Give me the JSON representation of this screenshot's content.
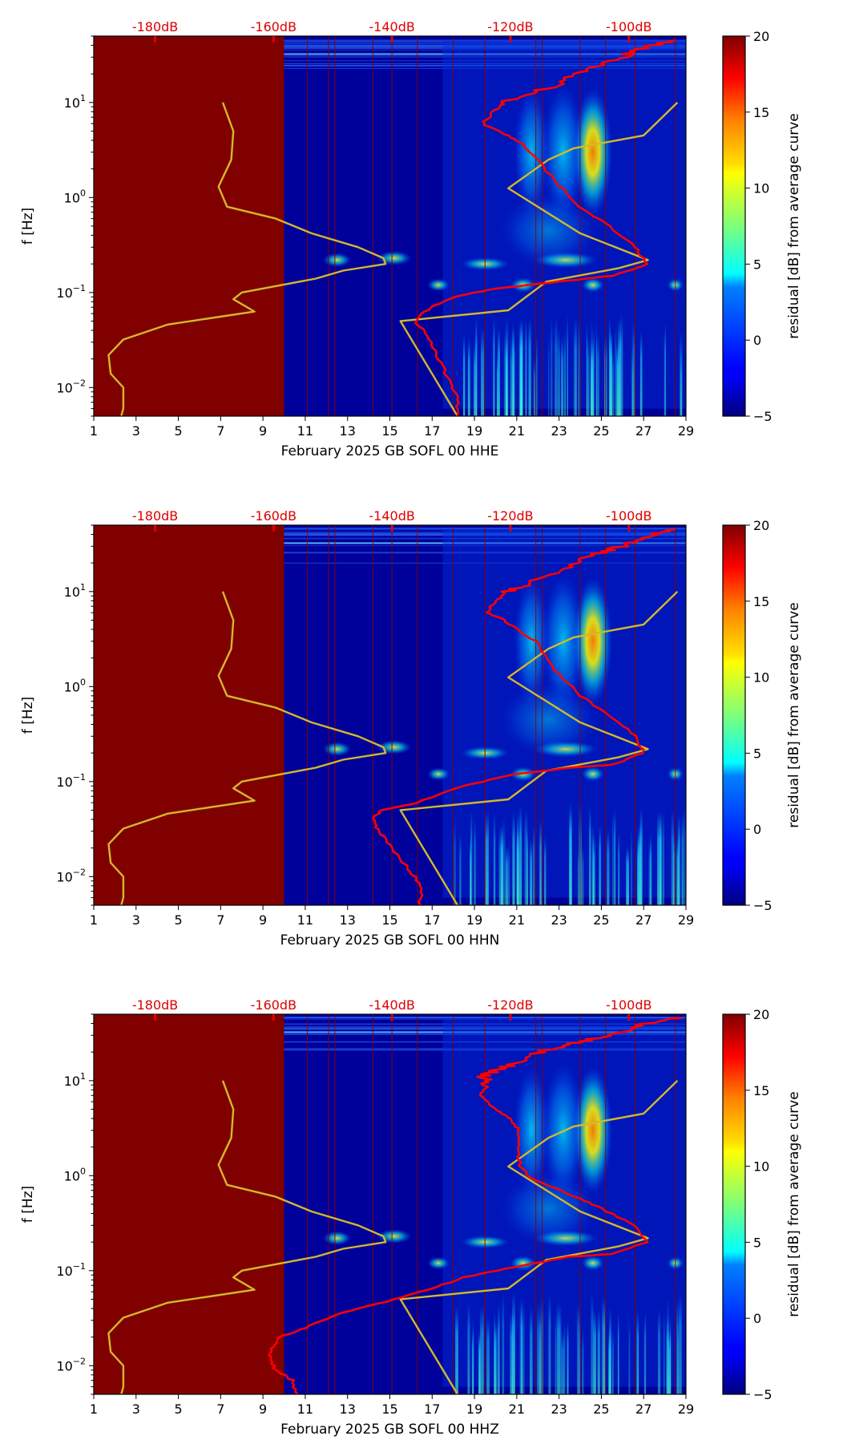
{
  "chart_data": [
    {
      "type": "heatmap",
      "xlabel": "February 2025 GB SOFL 00 HHE",
      "ylabel": "f [Hz]",
      "colorbar_label": "residual [dB] from average curve",
      "x_ticks": [
        "1",
        "3",
        "5",
        "7",
        "9",
        "11",
        "13",
        "15",
        "17",
        "19",
        "21",
        "23",
        "25",
        "27",
        "29"
      ],
      "xlim": [
        1,
        29
      ],
      "y_scale": "log",
      "ylim": [
        0.005,
        50
      ],
      "y_ticks": [
        {
          "value": 10,
          "base": "10",
          "exp": "1"
        },
        {
          "value": 1,
          "base": "10",
          "exp": "0"
        },
        {
          "value": 0.1,
          "base": "10",
          "exp": "−1"
        },
        {
          "value": 0.01,
          "base": "10",
          "exp": "−2"
        }
      ],
      "colorbar_ticks": [
        "20",
        "15",
        "10",
        "5",
        "0",
        "−5"
      ],
      "colorbar_range": [
        -5,
        20
      ],
      "top_axis_ticks": [
        "-180dB",
        "-160dB",
        "-140dB",
        "-120dB",
        "-100dB"
      ],
      "top_axis_day_positions": [
        3.9,
        9.5,
        15.1,
        20.7,
        26.3
      ],
      "no_data_until_day": 10,
      "median_curve": [
        [
          18.2,
          0.005
        ],
        [
          18.2,
          0.008
        ],
        [
          17.8,
          0.012
        ],
        [
          17.3,
          0.02
        ],
        [
          16.9,
          0.03
        ],
        [
          16.6,
          0.04
        ],
        [
          16.2,
          0.05
        ],
        [
          16.9,
          0.07
        ],
        [
          18.0,
          0.09
        ],
        [
          20.0,
          0.11
        ],
        [
          23.0,
          0.13
        ],
        [
          25.5,
          0.15
        ],
        [
          27.2,
          0.2
        ],
        [
          26.6,
          0.3
        ],
        [
          25.4,
          0.5
        ],
        [
          24.0,
          0.8
        ],
        [
          22.8,
          1.5
        ],
        [
          21.7,
          3
        ],
        [
          21.0,
          4
        ],
        [
          20.2,
          5
        ],
        [
          19.4,
          6
        ],
        [
          19.9,
          8
        ],
        [
          20.4,
          10
        ],
        [
          21.5,
          12
        ],
        [
          22.8,
          15
        ],
        [
          23.8,
          20
        ],
        [
          24.8,
          25
        ],
        [
          26.0,
          30
        ],
        [
          26.5,
          35
        ],
        [
          27.5,
          40
        ],
        [
          28.5,
          45
        ]
      ],
      "model_curve": [
        [
          2.3,
          0.005
        ],
        [
          2.4,
          0.006
        ],
        [
          2.4,
          0.01
        ],
        [
          1.8,
          0.014
        ],
        [
          1.7,
          0.022
        ],
        [
          2.4,
          0.032
        ],
        [
          4.5,
          0.046
        ],
        [
          8.6,
          0.063
        ],
        [
          7.6,
          0.085
        ],
        [
          8.0,
          0.1
        ],
        [
          11.5,
          0.14
        ],
        [
          12.8,
          0.17
        ],
        [
          14.8,
          0.2
        ],
        [
          14.7,
          0.23
        ],
        [
          13.5,
          0.3
        ],
        [
          11.3,
          0.42
        ],
        [
          9.6,
          0.6
        ],
        [
          7.3,
          0.8
        ],
        [
          6.9,
          1.3
        ],
        [
          7.5,
          2.5
        ],
        [
          7.6,
          5
        ],
        [
          7.1,
          10
        ]
      ],
      "model_curve_right": [
        [
          18.2,
          0.005
        ],
        [
          15.5,
          0.05
        ],
        [
          20.6,
          0.065
        ],
        [
          22.4,
          0.13
        ],
        [
          25.8,
          0.18
        ],
        [
          27.2,
          0.22
        ],
        [
          24.0,
          0.42
        ],
        [
          20.6,
          1.25
        ],
        [
          22.5,
          2.5
        ],
        [
          23.7,
          3.3
        ],
        [
          27.0,
          4.5
        ],
        [
          28.6,
          10
        ]
      ]
    },
    {
      "type": "heatmap",
      "xlabel": "February 2025 GB SOFL 00 HHN",
      "ylabel": "f [Hz]",
      "colorbar_label": "residual [dB] from average curve",
      "x_ticks": [
        "1",
        "3",
        "5",
        "7",
        "9",
        "11",
        "13",
        "15",
        "17",
        "19",
        "21",
        "23",
        "25",
        "27",
        "29"
      ],
      "xlim": [
        1,
        29
      ],
      "y_scale": "log",
      "ylim": [
        0.005,
        50
      ],
      "y_ticks": [
        {
          "value": 10,
          "base": "10",
          "exp": "1"
        },
        {
          "value": 1,
          "base": "10",
          "exp": "0"
        },
        {
          "value": 0.1,
          "base": "10",
          "exp": "−1"
        },
        {
          "value": 0.01,
          "base": "10",
          "exp": "−2"
        }
      ],
      "colorbar_ticks": [
        "20",
        "15",
        "10",
        "5",
        "0",
        "−5"
      ],
      "colorbar_range": [
        -5,
        20
      ],
      "top_axis_ticks": [
        "-180dB",
        "-160dB",
        "-140dB",
        "-120dB",
        "-100dB"
      ],
      "top_axis_day_positions": [
        3.9,
        9.5,
        15.1,
        20.7,
        26.3
      ],
      "no_data_until_day": 10,
      "median_curve": [
        [
          16.4,
          0.005
        ],
        [
          16.5,
          0.008
        ],
        [
          15.9,
          0.012
        ],
        [
          15.1,
          0.02
        ],
        [
          14.5,
          0.03
        ],
        [
          14.2,
          0.04
        ],
        [
          14.6,
          0.05
        ],
        [
          16.3,
          0.06
        ],
        [
          18.5,
          0.09
        ],
        [
          21.0,
          0.12
        ],
        [
          23.5,
          0.14
        ],
        [
          25.5,
          0.15
        ],
        [
          27.0,
          0.2
        ],
        [
          26.6,
          0.3
        ],
        [
          25.4,
          0.5
        ],
        [
          24.0,
          0.8
        ],
        [
          22.8,
          1.5
        ],
        [
          21.9,
          3
        ],
        [
          21.0,
          4
        ],
        [
          20.4,
          5
        ],
        [
          19.6,
          6
        ],
        [
          20.0,
          8
        ],
        [
          20.6,
          10
        ],
        [
          21.5,
          12
        ],
        [
          22.8,
          15
        ],
        [
          23.8,
          20
        ],
        [
          24.8,
          25
        ],
        [
          26.0,
          30
        ],
        [
          26.5,
          35
        ],
        [
          27.5,
          40
        ],
        [
          28.5,
          45
        ]
      ],
      "model_curve": [
        [
          2.3,
          0.005
        ],
        [
          2.4,
          0.006
        ],
        [
          2.4,
          0.01
        ],
        [
          1.8,
          0.014
        ],
        [
          1.7,
          0.022
        ],
        [
          2.4,
          0.032
        ],
        [
          4.5,
          0.046
        ],
        [
          8.6,
          0.063
        ],
        [
          7.6,
          0.085
        ],
        [
          8.0,
          0.1
        ],
        [
          11.5,
          0.14
        ],
        [
          12.8,
          0.17
        ],
        [
          14.8,
          0.2
        ],
        [
          14.7,
          0.23
        ],
        [
          13.5,
          0.3
        ],
        [
          11.3,
          0.42
        ],
        [
          9.6,
          0.6
        ],
        [
          7.3,
          0.8
        ],
        [
          6.9,
          1.3
        ],
        [
          7.5,
          2.5
        ],
        [
          7.6,
          5
        ],
        [
          7.1,
          10
        ]
      ],
      "model_curve_right": [
        [
          18.2,
          0.005
        ],
        [
          15.5,
          0.05
        ],
        [
          20.6,
          0.065
        ],
        [
          22.4,
          0.13
        ],
        [
          25.8,
          0.18
        ],
        [
          27.2,
          0.22
        ],
        [
          24.0,
          0.42
        ],
        [
          20.6,
          1.25
        ],
        [
          22.5,
          2.5
        ],
        [
          23.7,
          3.3
        ],
        [
          27.0,
          4.5
        ],
        [
          28.6,
          10
        ]
      ]
    },
    {
      "type": "heatmap",
      "xlabel": "February 2025 GB SOFL 00 HHZ",
      "ylabel": "f [Hz]",
      "colorbar_label": "residual [dB] from average curve",
      "x_ticks": [
        "1",
        "3",
        "5",
        "7",
        "9",
        "11",
        "13",
        "15",
        "17",
        "19",
        "21",
        "23",
        "25",
        "27",
        "29"
      ],
      "xlim": [
        1,
        29
      ],
      "y_scale": "log",
      "ylim": [
        0.005,
        50
      ],
      "y_ticks": [
        {
          "value": 10,
          "base": "10",
          "exp": "1"
        },
        {
          "value": 1,
          "base": "10",
          "exp": "0"
        },
        {
          "value": 0.1,
          "base": "10",
          "exp": "−1"
        },
        {
          "value": 0.01,
          "base": "10",
          "exp": "−2"
        }
      ],
      "colorbar_ticks": [
        "20",
        "15",
        "10",
        "5",
        "0",
        "−5"
      ],
      "colorbar_range": [
        -5,
        20
      ],
      "top_axis_ticks": [
        "-180dB",
        "-160dB",
        "-140dB",
        "-120dB",
        "-100dB"
      ],
      "top_axis_day_positions": [
        3.9,
        9.5,
        15.1,
        20.7,
        26.3
      ],
      "no_data_until_day": 10,
      "median_curve": [
        [
          10.6,
          0.005
        ],
        [
          10.4,
          0.007
        ],
        [
          9.6,
          0.009
        ],
        [
          9.3,
          0.012
        ],
        [
          9.4,
          0.015
        ],
        [
          9.8,
          0.02
        ],
        [
          11.0,
          0.025
        ],
        [
          12.5,
          0.035
        ],
        [
          14.5,
          0.045
        ],
        [
          16.5,
          0.06
        ],
        [
          18.5,
          0.085
        ],
        [
          21.0,
          0.11
        ],
        [
          23.5,
          0.14
        ],
        [
          25.5,
          0.15
        ],
        [
          27.2,
          0.2
        ],
        [
          26.6,
          0.3
        ],
        [
          25.0,
          0.45
        ],
        [
          23.8,
          0.6
        ],
        [
          21.8,
          0.9
        ],
        [
          21.2,
          1.2
        ],
        [
          21.0,
          1.8
        ],
        [
          21.1,
          3
        ],
        [
          20.7,
          4
        ],
        [
          20.0,
          5
        ],
        [
          19.3,
          7
        ],
        [
          19.6,
          9
        ],
        [
          19.4,
          11
        ],
        [
          20.0,
          13
        ],
        [
          21.0,
          15
        ],
        [
          22.0,
          20
        ],
        [
          23.5,
          24
        ],
        [
          24.8,
          28
        ],
        [
          26.0,
          33
        ],
        [
          26.8,
          38
        ],
        [
          27.8,
          43
        ],
        [
          28.6,
          46
        ]
      ],
      "model_curve": [
        [
          2.3,
          0.005
        ],
        [
          2.4,
          0.006
        ],
        [
          2.4,
          0.01
        ],
        [
          1.8,
          0.014
        ],
        [
          1.7,
          0.022
        ],
        [
          2.4,
          0.032
        ],
        [
          4.5,
          0.046
        ],
        [
          8.6,
          0.063
        ],
        [
          7.6,
          0.085
        ],
        [
          8.0,
          0.1
        ],
        [
          11.5,
          0.14
        ],
        [
          12.8,
          0.17
        ],
        [
          14.8,
          0.2
        ],
        [
          14.7,
          0.23
        ],
        [
          13.5,
          0.3
        ],
        [
          11.3,
          0.42
        ],
        [
          9.6,
          0.6
        ],
        [
          7.3,
          0.8
        ],
        [
          6.9,
          1.3
        ],
        [
          7.5,
          2.5
        ],
        [
          7.6,
          5
        ],
        [
          7.1,
          10
        ]
      ],
      "model_curve_right": [
        [
          18.2,
          0.005
        ],
        [
          15.5,
          0.05
        ],
        [
          20.6,
          0.065
        ],
        [
          22.4,
          0.13
        ],
        [
          25.8,
          0.18
        ],
        [
          27.2,
          0.22
        ],
        [
          24.0,
          0.42
        ],
        [
          20.6,
          1.25
        ],
        [
          22.5,
          2.5
        ],
        [
          23.7,
          3.3
        ],
        [
          27.0,
          4.5
        ],
        [
          28.6,
          10
        ]
      ]
    }
  ],
  "colors": {
    "no_data": "#800000",
    "median_curve": "#ff0000",
    "model_curve": "#d4b82a",
    "top_ticks": "#e00000"
  }
}
